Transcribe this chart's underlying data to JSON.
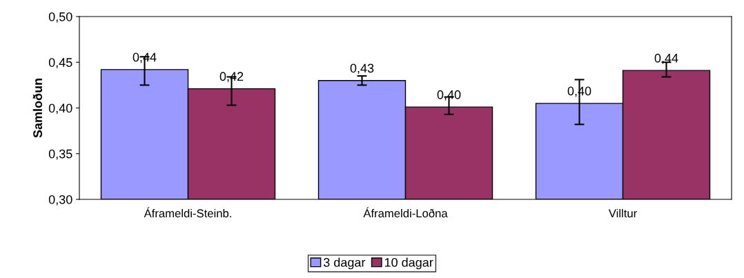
{
  "chart_data": {
    "type": "bar",
    "ylabel": "Samloðun",
    "categories": [
      "Áframeldi-Steinb.",
      "Áframeldi-Loðna",
      "Villtur"
    ],
    "series": [
      {
        "name": "3 dagar",
        "color": "#9999ff",
        "values": [
          0.442,
          0.43,
          0.405
        ],
        "errors": [
          [
            0.425,
            0.456
          ],
          [
            0.425,
            0.435
          ],
          [
            0.382,
            0.431
          ]
        ],
        "value_labels": [
          "0,44",
          "0,43",
          "0,40"
        ]
      },
      {
        "name": "10 dagar",
        "color": "#993366",
        "values": [
          0.421,
          0.401,
          0.441
        ],
        "errors": [
          [
            0.403,
            0.434
          ],
          [
            0.393,
            0.412
          ],
          [
            0.434,
            0.45
          ]
        ],
        "value_labels": [
          "0,42",
          "0,40",
          "0,44"
        ]
      }
    ],
    "ylim": [
      0.3,
      0.5
    ],
    "yticks": [
      {
        "value": 0.3,
        "label": "0,30"
      },
      {
        "value": 0.35,
        "label": "0,35"
      },
      {
        "value": 0.4,
        "label": "0,40"
      },
      {
        "value": 0.45,
        "label": "0,45"
      },
      {
        "value": 0.5,
        "label": "0,50"
      }
    ],
    "grid": false,
    "legend": "bottom"
  }
}
